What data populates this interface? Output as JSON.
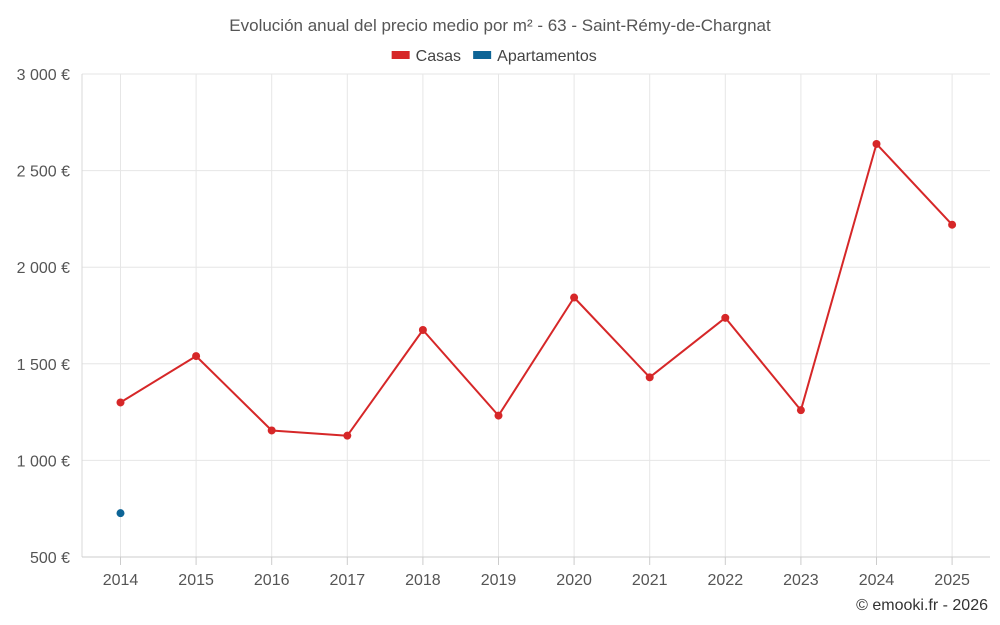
{
  "chart_data": {
    "type": "line",
    "title": "Evolución anual del precio medio por m² - 63 - Saint-Rémy-de-Chargnat",
    "xlabel": "",
    "ylabel": "",
    "categories": [
      "2014",
      "2015",
      "2016",
      "2017",
      "2018",
      "2019",
      "2020",
      "2021",
      "2022",
      "2023",
      "2024",
      "2025"
    ],
    "ylim": [
      500,
      3000
    ],
    "yticks": [
      500,
      1000,
      1500,
      2000,
      2500,
      3000
    ],
    "ytick_labels": [
      "500 €",
      "1 000 €",
      "1 500 €",
      "2 000 €",
      "2 500 €",
      "3 000 €"
    ],
    "grid": true,
    "legend_position": "top-center",
    "series": [
      {
        "name": "Casas",
        "color": "#d62728",
        "values": [
          1300,
          1540,
          1155,
          1128,
          1675,
          1232,
          1843,
          1430,
          1738,
          1260,
          2638,
          2220
        ]
      },
      {
        "name": "Apartamentos",
        "color": "#0d6496",
        "values": [
          727,
          null,
          null,
          null,
          null,
          null,
          null,
          null,
          null,
          null,
          null,
          null
        ]
      }
    ],
    "credit": "© emooki.fr - 2026"
  }
}
